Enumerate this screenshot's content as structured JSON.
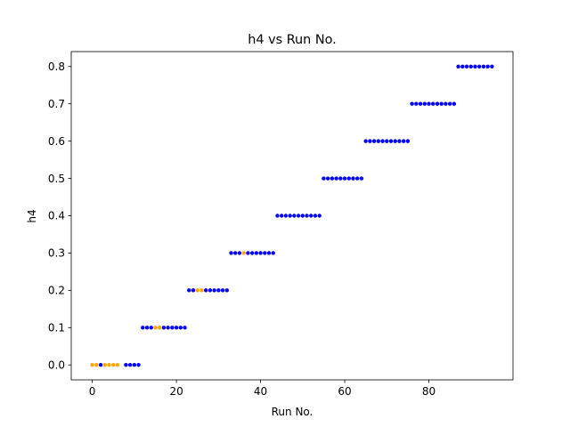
{
  "chart_data": {
    "type": "scatter",
    "title": "h4 vs Run No.",
    "xlabel": "Run No.",
    "ylabel": "h4",
    "xlim": [
      -5,
      100
    ],
    "ylim": [
      -0.04,
      0.84
    ],
    "xticks": [
      0,
      20,
      40,
      60,
      80
    ],
    "yticks": [
      0.0,
      0.1,
      0.2,
      0.3,
      0.4,
      0.5,
      0.6,
      0.7,
      0.8
    ],
    "xtick_labels": [
      "0",
      "20",
      "40",
      "60",
      "80"
    ],
    "ytick_labels": [
      "0.0",
      "0.1",
      "0.2",
      "0.3",
      "0.4",
      "0.5",
      "0.6",
      "0.7",
      "0.8"
    ],
    "grid": false,
    "legend": "none",
    "colors": {
      "primary": "#0000ff",
      "highlight": "#ffa500"
    },
    "series": [
      {
        "color": "#0000ff",
        "points": [
          [
            2,
            0.0
          ],
          [
            8,
            0.0
          ],
          [
            9,
            0.0
          ],
          [
            10,
            0.0
          ],
          [
            11,
            0.0
          ],
          [
            12,
            0.1
          ],
          [
            13,
            0.1
          ],
          [
            14,
            0.1
          ],
          [
            17,
            0.1
          ],
          [
            18,
            0.1
          ],
          [
            19,
            0.1
          ],
          [
            20,
            0.1
          ],
          [
            21,
            0.1
          ],
          [
            22,
            0.1
          ],
          [
            23,
            0.2
          ],
          [
            24,
            0.2
          ],
          [
            27,
            0.2
          ],
          [
            28,
            0.2
          ],
          [
            29,
            0.2
          ],
          [
            30,
            0.2
          ],
          [
            31,
            0.2
          ],
          [
            32,
            0.2
          ],
          [
            33,
            0.3
          ],
          [
            34,
            0.3
          ],
          [
            35,
            0.3
          ],
          [
            37,
            0.3
          ],
          [
            38,
            0.3
          ],
          [
            39,
            0.3
          ],
          [
            40,
            0.3
          ],
          [
            41,
            0.3
          ],
          [
            42,
            0.3
          ],
          [
            43,
            0.3
          ],
          [
            44,
            0.4
          ],
          [
            45,
            0.4
          ],
          [
            46,
            0.4
          ],
          [
            47,
            0.4
          ],
          [
            48,
            0.4
          ],
          [
            49,
            0.4
          ],
          [
            50,
            0.4
          ],
          [
            51,
            0.4
          ],
          [
            52,
            0.4
          ],
          [
            53,
            0.4
          ],
          [
            54,
            0.4
          ],
          [
            55,
            0.5
          ],
          [
            56,
            0.5
          ],
          [
            57,
            0.5
          ],
          [
            58,
            0.5
          ],
          [
            59,
            0.5
          ],
          [
            60,
            0.5
          ],
          [
            61,
            0.5
          ],
          [
            62,
            0.5
          ],
          [
            63,
            0.5
          ],
          [
            64,
            0.5
          ],
          [
            65,
            0.6
          ],
          [
            66,
            0.6
          ],
          [
            67,
            0.6
          ],
          [
            68,
            0.6
          ],
          [
            69,
            0.6
          ],
          [
            70,
            0.6
          ],
          [
            71,
            0.6
          ],
          [
            72,
            0.6
          ],
          [
            73,
            0.6
          ],
          [
            74,
            0.6
          ],
          [
            75,
            0.6
          ],
          [
            76,
            0.7
          ],
          [
            77,
            0.7
          ],
          [
            78,
            0.7
          ],
          [
            79,
            0.7
          ],
          [
            80,
            0.7
          ],
          [
            81,
            0.7
          ],
          [
            82,
            0.7
          ],
          [
            83,
            0.7
          ],
          [
            84,
            0.7
          ],
          [
            85,
            0.7
          ],
          [
            86,
            0.7
          ],
          [
            87,
            0.8
          ],
          [
            88,
            0.8
          ],
          [
            89,
            0.8
          ],
          [
            90,
            0.8
          ],
          [
            91,
            0.8
          ],
          [
            92,
            0.8
          ],
          [
            93,
            0.8
          ],
          [
            94,
            0.8
          ],
          [
            95,
            0.8
          ]
        ]
      },
      {
        "color": "#ffa500",
        "points": [
          [
            0,
            0.0
          ],
          [
            1,
            0.0
          ],
          [
            3,
            0.0
          ],
          [
            4,
            0.0
          ],
          [
            5,
            0.0
          ],
          [
            6,
            0.0
          ],
          [
            15,
            0.1
          ],
          [
            16,
            0.1
          ],
          [
            25,
            0.2
          ],
          [
            26,
            0.2
          ],
          [
            36,
            0.3
          ]
        ]
      }
    ]
  }
}
